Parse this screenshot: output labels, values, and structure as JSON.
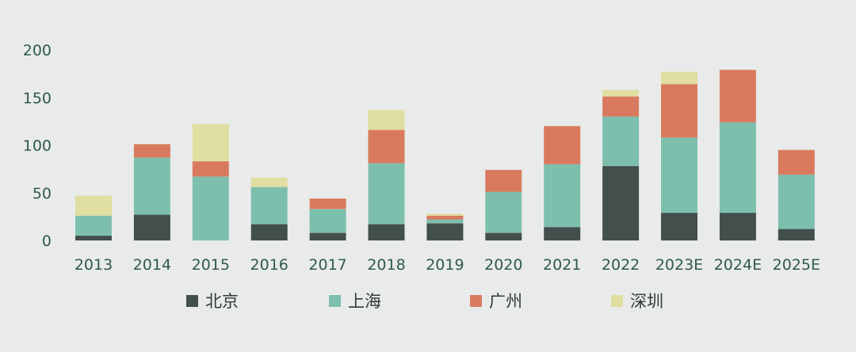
{
  "chart_data": {
    "type": "bar",
    "stacked": true,
    "categories": [
      "2013",
      "2014",
      "2015",
      "2016",
      "2017",
      "2018",
      "2019",
      "2020",
      "2021",
      "2022",
      "2023E",
      "2024E",
      "2025E"
    ],
    "series": [
      {
        "name": "北京",
        "color": "#434f4d",
        "values": [
          5,
          27,
          0,
          17,
          8,
          17,
          18,
          8,
          14,
          78,
          29,
          29,
          12
        ]
      },
      {
        "name": "上海",
        "color": "#7dbfad",
        "values": [
          21,
          60,
          67,
          39,
          25,
          64,
          4,
          43,
          66,
          52,
          79,
          95,
          57
        ]
      },
      {
        "name": "广州",
        "color": "#d97a5e",
        "values": [
          0,
          14,
          16,
          0,
          11,
          35,
          4,
          23,
          40,
          21,
          56,
          55,
          26
        ]
      },
      {
        "name": "深圳",
        "color": "#e0dea1",
        "values": [
          21,
          0,
          39,
          10,
          0,
          21,
          2,
          0,
          0,
          7,
          13,
          0,
          0
        ]
      }
    ],
    "yticks": [
      0,
      50,
      100,
      150,
      200
    ],
    "ylim": [
      0,
      200
    ],
    "grid": false,
    "legend_position": "bottom"
  }
}
